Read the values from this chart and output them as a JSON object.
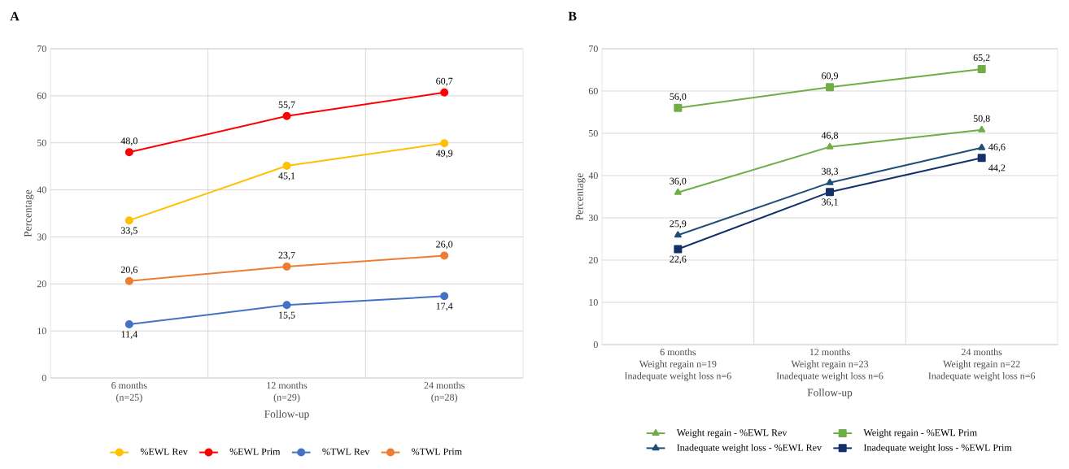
{
  "chart_data": [
    {
      "type": "line",
      "title": "A",
      "xlabel": "Follow-up",
      "ylabel": "Percentage",
      "categories": [
        "6 months\n(n=25)",
        "12 months\n(n=29)",
        "24 months\n(n=28)"
      ],
      "ylim": [
        0,
        70
      ],
      "yticks": [
        0,
        10,
        20,
        30,
        40,
        50,
        60,
        70
      ],
      "grid": true,
      "legend": "bottom",
      "marker": "circle",
      "series": [
        {
          "name": "%EWL Rev",
          "color": "#ffc000",
          "values": [
            33.5,
            45.1,
            49.9
          ],
          "value_labels": [
            "33,5",
            "45,1",
            "49,9"
          ]
        },
        {
          "name": "%EWL Prim",
          "color": "#ff0000",
          "values": [
            48.0,
            55.7,
            60.7
          ],
          "value_labels": [
            "48,0",
            "55,7",
            "60,7"
          ]
        },
        {
          "name": "%TWL Rev",
          "color": "#4472c4",
          "values": [
            11.4,
            15.5,
            17.4
          ],
          "value_labels": [
            "11,4",
            "15,5",
            "17,4"
          ]
        },
        {
          "name": "%TWL Prim",
          "color": "#ed7d31",
          "values": [
            20.6,
            23.7,
            26.0
          ],
          "value_labels": [
            "20,6",
            "23,7",
            "26,0"
          ]
        }
      ]
    },
    {
      "type": "line",
      "title": "B",
      "xlabel": "Follow-up",
      "ylabel": "Percentage",
      "categories": [
        "6 months\nWeight regain n=19\nInadequate weight loss n=6",
        "12 months\nWeight regain n=23\nInadequate weight loss n=6",
        "24 months\nWeight regain n=22\nInadequate weight loss n=6"
      ],
      "ylim": [
        0,
        70
      ],
      "yticks": [
        0,
        10,
        20,
        30,
        40,
        50,
        60,
        70
      ],
      "grid": true,
      "legend": "bottom",
      "series": [
        {
          "name": "Weight regain - %EWL Rev",
          "color": "#70ad47",
          "marker": "triangle",
          "values": [
            36.0,
            46.8,
            50.8
          ],
          "value_labels": [
            "36,0",
            "46,8",
            "50,8"
          ]
        },
        {
          "name": "Weight regain - %EWL Prim",
          "color": "#70ad47",
          "marker": "square",
          "values": [
            56.0,
            60.9,
            65.2
          ],
          "value_labels": [
            "56,0",
            "60,9",
            "65,2"
          ]
        },
        {
          "name": "Inadequate weight loss - %EWL Rev",
          "color": "#1f4e79",
          "marker": "triangle",
          "values": [
            25.9,
            38.3,
            46.6
          ],
          "value_labels": [
            "25,9",
            "38,3",
            "46,6"
          ]
        },
        {
          "name": "Inadequate weight loss - %EWL Prim",
          "color": "#14306b",
          "marker": "square",
          "values": [
            22.6,
            36.1,
            44.2
          ],
          "value_labels": [
            "22,6",
            "36,1",
            "44,2"
          ]
        }
      ]
    }
  ]
}
